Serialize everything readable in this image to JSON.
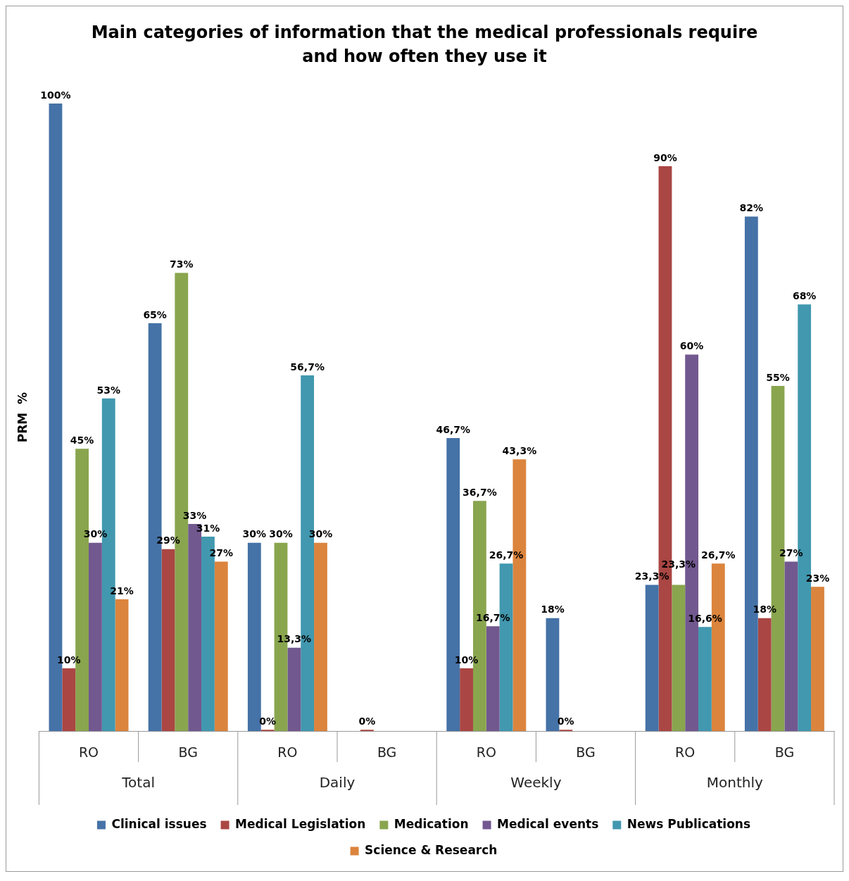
{
  "chart_data": {
    "type": "bar",
    "title": "Main categories of information that the medical professionals require and how often they use it",
    "ylabel": "PRM  %",
    "categories": [
      "RO",
      "BG",
      "RO",
      "BG",
      "RO",
      "BG",
      "RO",
      "BG"
    ],
    "annotations": [
      "Total",
      "Daily",
      "Weekly",
      "Monthly"
    ],
    "ylim": [
      0,
      100
    ],
    "legend": "bottom",
    "data_labels": true,
    "series": [
      {
        "name": "Clinical issues",
        "color": "#4572a7",
        "values": [
          100,
          65,
          30,
          null,
          46.7,
          18,
          23.3,
          82
        ],
        "value_labels": [
          "100%",
          "65%",
          "30%",
          null,
          "46,7%",
          "18%",
          "23,3%",
          "82%"
        ]
      },
      {
        "name": "Medical Legislation",
        "color": "#aa4643",
        "values": [
          10,
          29,
          0,
          0,
          10,
          0,
          90,
          18
        ],
        "value_labels": [
          "10%",
          "29%",
          "0%",
          "0%",
          "10%",
          "0%",
          "90%",
          "18%"
        ]
      },
      {
        "name": "Medication",
        "color": "#89a54e",
        "values": [
          45,
          73,
          30,
          null,
          36.7,
          null,
          23.3,
          55
        ],
        "value_labels": [
          "45%",
          "73%",
          "30%",
          null,
          "36,7%",
          null,
          "23,3%",
          "55%"
        ]
      },
      {
        "name": "Medical events",
        "color": "#71588f",
        "values": [
          30,
          33,
          13.3,
          null,
          16.7,
          null,
          60,
          27
        ],
        "value_labels": [
          "30%",
          "33%",
          "13,3%",
          null,
          "16,7%",
          null,
          "60%",
          "27%"
        ]
      },
      {
        "name": "News Publications",
        "color": "#4198af",
        "values": [
          53,
          31,
          56.7,
          null,
          26.7,
          null,
          16.6,
          68
        ],
        "value_labels": [
          "53%",
          "31%",
          "56,7%",
          null,
          "26,7%",
          null,
          "16,6%",
          "68%"
        ]
      },
      {
        "name": "Science & Research",
        "color": "#db843d",
        "values": [
          21,
          27,
          30,
          null,
          43.3,
          null,
          26.7,
          23
        ],
        "value_labels": [
          "21%",
          "27%",
          "30%",
          null,
          "43,3%",
          null,
          "26,7%",
          "23%"
        ]
      }
    ]
  }
}
